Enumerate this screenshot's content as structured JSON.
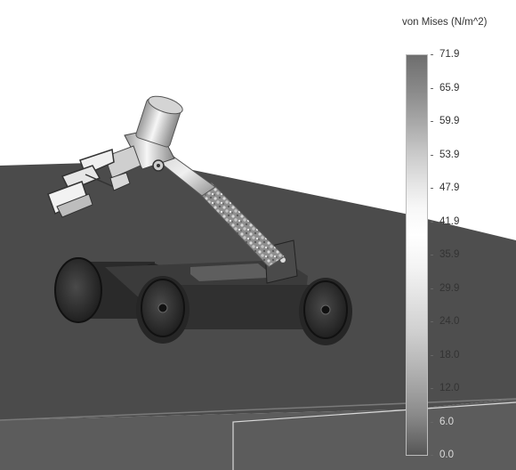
{
  "legend": {
    "title": "von Mises (N/m^2)",
    "labels": [
      "71.9",
      "65.9",
      "59.9",
      "53.9",
      "47.9",
      "41.9",
      "35.9",
      "29.9",
      "24.0",
      "18.0",
      "12.0",
      "6.0",
      "0.0"
    ]
  }
}
